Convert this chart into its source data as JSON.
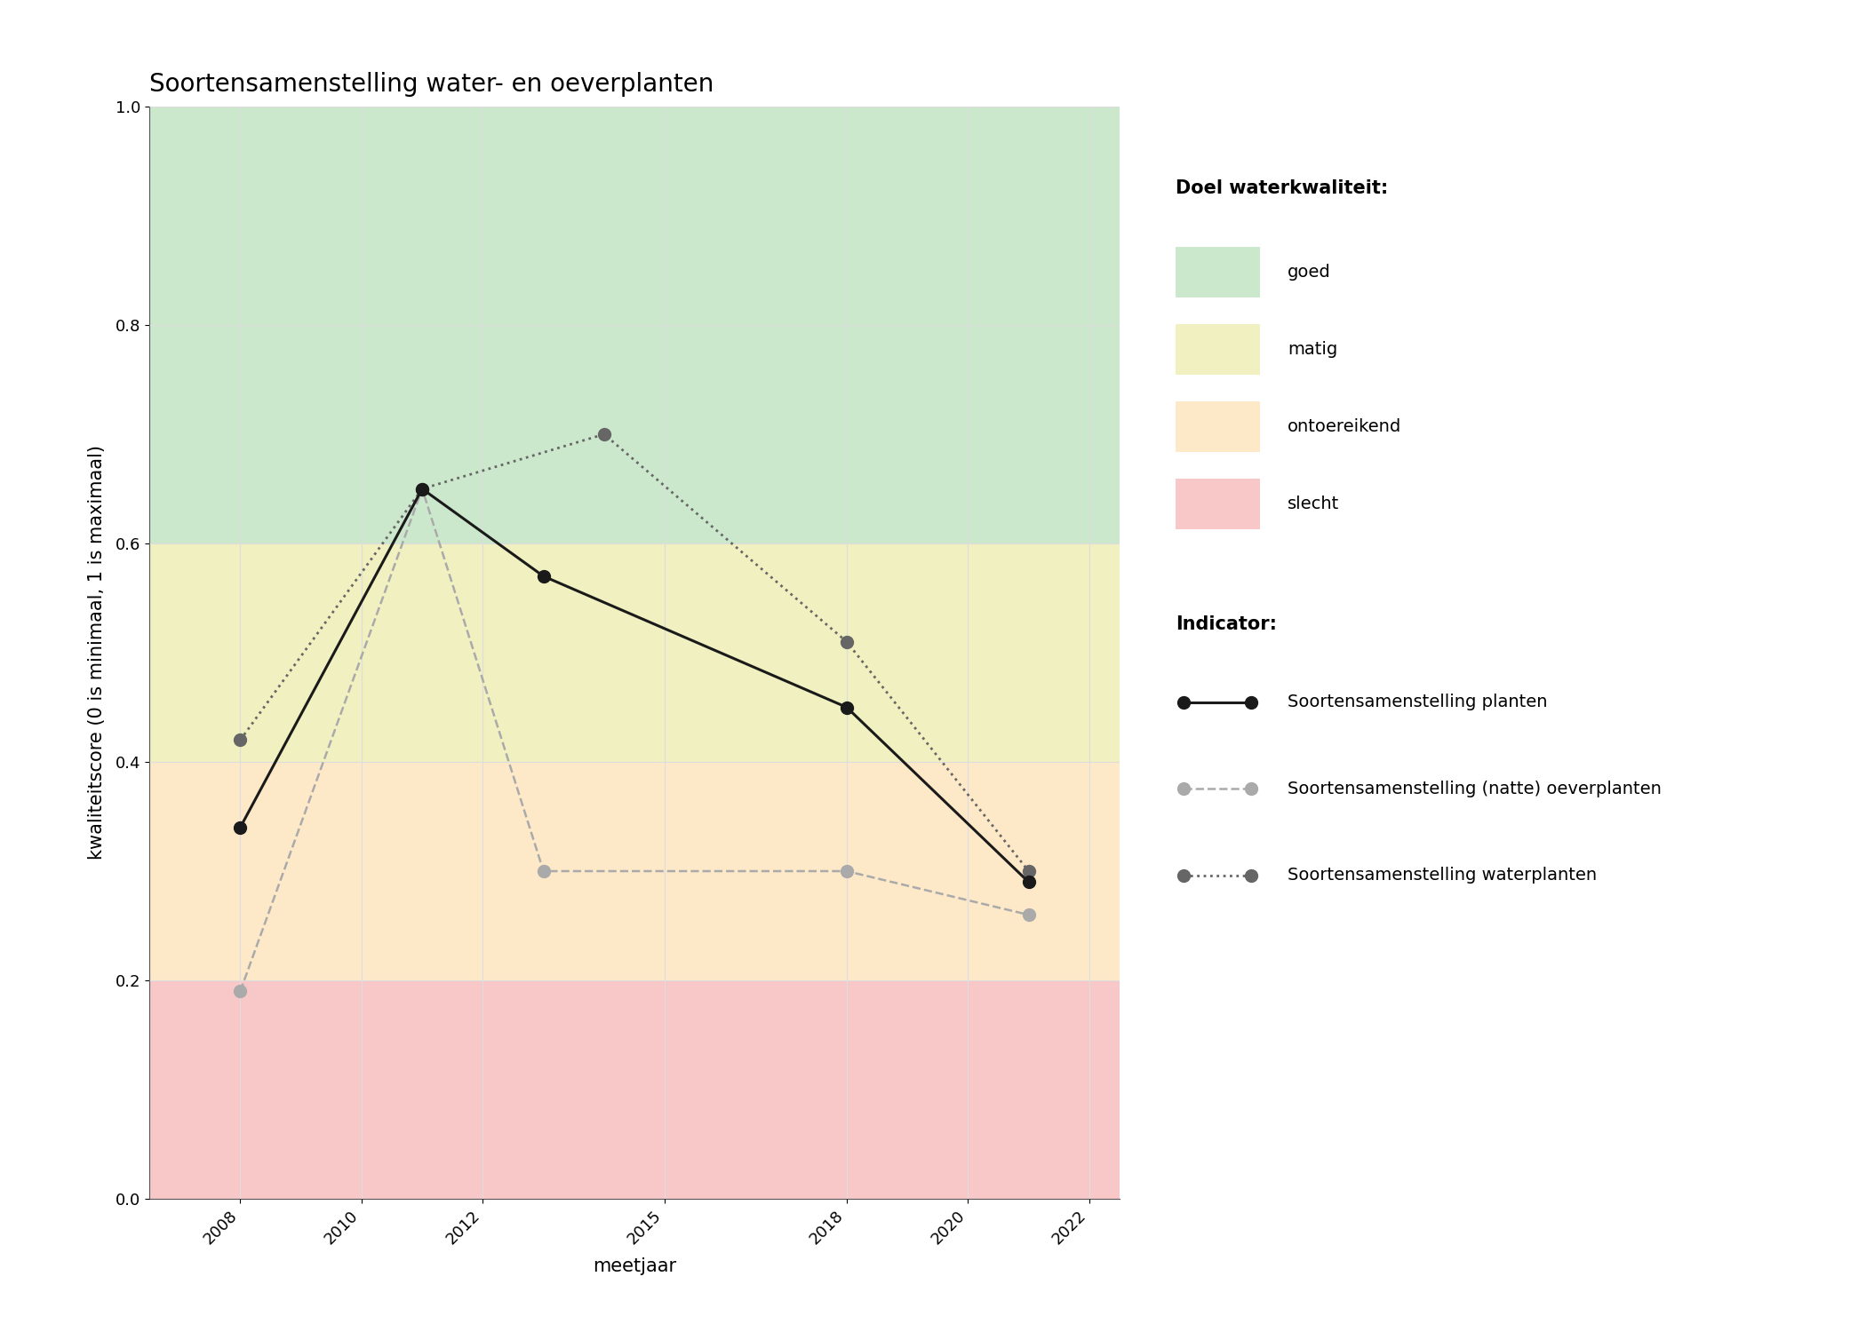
{
  "title": "Soortensamenstelling water- en oeverplanten",
  "xlabel": "meetjaar",
  "ylabel": "kwaliteitscore (0 is minimaal, 1 is maximaal)",
  "xlim": [
    2006.5,
    2022.5
  ],
  "ylim": [
    0.0,
    1.0
  ],
  "xticks": [
    2008,
    2010,
    2012,
    2015,
    2018,
    2020,
    2022
  ],
  "yticks": [
    0.0,
    0.2,
    0.4,
    0.6,
    0.8,
    1.0
  ],
  "background_color": "#ffffff",
  "bg_zones": [
    {
      "ymin": 0.6,
      "ymax": 1.0,
      "color": "#cce8cc",
      "label": "goed"
    },
    {
      "ymin": 0.4,
      "ymax": 0.6,
      "color": "#f0f0c0",
      "label": "matig"
    },
    {
      "ymin": 0.2,
      "ymax": 0.4,
      "color": "#fde8c8",
      "label": "ontoereikend"
    },
    {
      "ymin": 0.0,
      "ymax": 0.2,
      "color": "#f8c8c8",
      "label": "slecht"
    }
  ],
  "series": [
    {
      "name": "Soortensamenstelling planten",
      "x": [
        2008,
        2011,
        2013,
        2018,
        2021
      ],
      "y": [
        0.34,
        0.65,
        0.57,
        0.45,
        0.29
      ],
      "color": "#1a1a1a",
      "linestyle": "solid",
      "linewidth": 2.2,
      "markersize": 10,
      "marker": "o",
      "zorder": 5
    },
    {
      "name": "Soortensamenstelling (natte) oeverplanten",
      "x": [
        2008,
        2011,
        2013,
        2018,
        2021
      ],
      "y": [
        0.19,
        0.65,
        0.3,
        0.3,
        0.26
      ],
      "color": "#aaaaaa",
      "linestyle": "dashed",
      "linewidth": 1.8,
      "markersize": 10,
      "marker": "o",
      "zorder": 4
    },
    {
      "name": "Soortensamenstelling waterplanten",
      "x": [
        2008,
        2011,
        2014,
        2018,
        2021
      ],
      "y": [
        0.42,
        0.65,
        0.7,
        0.51,
        0.3
      ],
      "color": "#666666",
      "linestyle": "dotted",
      "linewidth": 2.0,
      "markersize": 10,
      "marker": "o",
      "zorder": 4
    }
  ],
  "legend_title_bg": "Doel waterkwaliteit:",
  "legend_title_ind": "Indicator:",
  "legend_bg_colors": [
    "#cce8cc",
    "#f0f0c0",
    "#fde8c8",
    "#f8c8c8"
  ],
  "legend_bg_labels": [
    "goed",
    "matig",
    "ontoereikend",
    "slecht"
  ],
  "grid_color": "#dddddd",
  "grid_alpha": 1.0,
  "title_fontsize": 20,
  "axis_label_fontsize": 15,
  "tick_fontsize": 13,
  "legend_fontsize": 14
}
